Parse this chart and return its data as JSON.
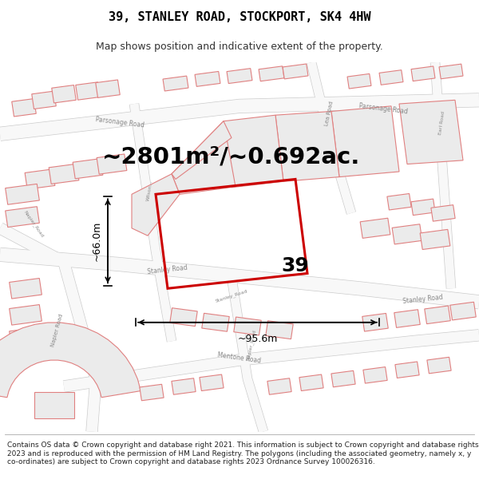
{
  "title": "39, STANLEY ROAD, STOCKPORT, SK4 4HW",
  "subtitle": "Map shows position and indicative extent of the property.",
  "footer": "Contains OS data © Crown copyright and database right 2021. This information is subject to Crown copyright and database rights 2023 and is reproduced with the permission of HM Land Registry. The polygons (including the associated geometry, namely x, y co-ordinates) are subject to Crown copyright and database rights 2023 Ordnance Survey 100026316.",
  "area_text": "~2801m²/~0.692ac.",
  "width_label": "~95.6m",
  "height_label": "~66.0m",
  "property_number": "39",
  "map_bg": "#ffffff",
  "parcel_fill": "#ebebeb",
  "parcel_stroke": "#e08080",
  "road_fill": "#f5f5f5",
  "road_stroke": "#cccccc",
  "highlight_color": "#cc0000",
  "text_color": "#000000",
  "road_label_color": "#888888",
  "title_fontsize": 11,
  "subtitle_fontsize": 9,
  "area_fontsize": 21,
  "footer_fontsize": 6.5
}
